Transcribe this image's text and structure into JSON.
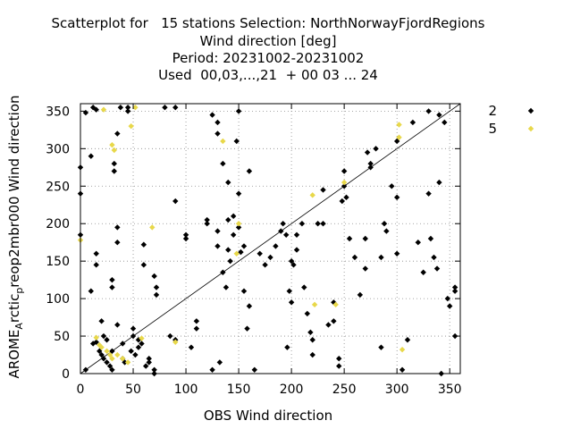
{
  "chart_data": {
    "type": "scatter",
    "title_lines": [
      "Scatterplot for   15 stations Selection: NorthNorwayFjordRegions",
      "Wind direction [deg]",
      "Period: 20231002-20231002",
      "Used  00,03,...,21  + 00 03 ... 24"
    ],
    "xlabel": "OBS Wind direction",
    "ylabel_prefix": "AROME",
    "ylabel_sub1": "A",
    "ylabel_mid": "rctic",
    "ylabel_sub2": "p",
    "ylabel_suffix": "reop2mbr000 Wind direction",
    "xlim": [
      0,
      360
    ],
    "ylim": [
      0,
      360
    ],
    "xticks": [
      0,
      50,
      100,
      150,
      200,
      250,
      300,
      350
    ],
    "yticks": [
      0,
      50,
      100,
      150,
      200,
      250,
      300,
      350
    ],
    "grid": true,
    "grid_style": "dotted",
    "diagonal": true,
    "legend_position": "right",
    "series": [
      {
        "name": "2",
        "color": "#000000",
        "marker": "diamond",
        "points": [
          [
            0,
            185
          ],
          [
            0,
            275
          ],
          [
            0,
            240
          ],
          [
            5,
            5
          ],
          [
            5,
            348
          ],
          [
            10,
            290
          ],
          [
            10,
            110
          ],
          [
            12,
            355
          ],
          [
            15,
            352
          ],
          [
            15,
            160
          ],
          [
            15,
            145
          ],
          [
            12,
            40
          ],
          [
            15,
            42
          ],
          [
            18,
            30
          ],
          [
            20,
            25
          ],
          [
            22,
            20
          ],
          [
            20,
            70
          ],
          [
            22,
            50
          ],
          [
            25,
            45
          ],
          [
            25,
            15
          ],
          [
            28,
            10
          ],
          [
            30,
            5
          ],
          [
            30,
            30
          ],
          [
            32,
            280
          ],
          [
            32,
            270
          ],
          [
            30,
            125
          ],
          [
            30,
            115
          ],
          [
            35,
            320
          ],
          [
            35,
            195
          ],
          [
            35,
            175
          ],
          [
            35,
            65
          ],
          [
            38,
            355
          ],
          [
            40,
            40
          ],
          [
            40,
            20
          ],
          [
            42,
            15
          ],
          [
            45,
            350
          ],
          [
            45,
            355
          ],
          [
            48,
            30
          ],
          [
            50,
            50
          ],
          [
            50,
            60
          ],
          [
            52,
            25
          ],
          [
            55,
            45
          ],
          [
            55,
            35
          ],
          [
            58,
            40
          ],
          [
            60,
            172
          ],
          [
            60,
            145
          ],
          [
            62,
            10
          ],
          [
            65,
            20
          ],
          [
            65,
            15
          ],
          [
            70,
            5
          ],
          [
            70,
            0
          ],
          [
            72,
            105
          ],
          [
            72,
            115
          ],
          [
            70,
            130
          ],
          [
            80,
            355
          ],
          [
            85,
            50
          ],
          [
            90,
            355
          ],
          [
            90,
            230
          ],
          [
            90,
            45
          ],
          [
            100,
            185
          ],
          [
            100,
            180
          ],
          [
            105,
            35
          ],
          [
            110,
            70
          ],
          [
            110,
            60
          ],
          [
            120,
            200
          ],
          [
            120,
            205
          ],
          [
            125,
            345
          ],
          [
            125,
            5
          ],
          [
            130,
            335
          ],
          [
            130,
            320
          ],
          [
            130,
            190
          ],
          [
            130,
            170
          ],
          [
            132,
            15
          ],
          [
            135,
            280
          ],
          [
            135,
            135
          ],
          [
            138,
            115
          ],
          [
            140,
            255
          ],
          [
            140,
            205
          ],
          [
            140,
            165
          ],
          [
            142,
            150
          ],
          [
            145,
            210
          ],
          [
            145,
            185
          ],
          [
            148,
            310
          ],
          [
            150,
            350
          ],
          [
            150,
            240
          ],
          [
            150,
            195
          ],
          [
            152,
            162
          ],
          [
            155,
            170
          ],
          [
            155,
            110
          ],
          [
            158,
            60
          ],
          [
            160,
            270
          ],
          [
            160,
            90
          ],
          [
            165,
            5
          ],
          [
            170,
            160
          ],
          [
            175,
            145
          ],
          [
            180,
            155
          ],
          [
            185,
            170
          ],
          [
            190,
            190
          ],
          [
            192,
            200
          ],
          [
            195,
            185
          ],
          [
            196,
            35
          ],
          [
            198,
            110
          ],
          [
            200,
            95
          ],
          [
            200,
            150
          ],
          [
            202,
            145
          ],
          [
            205,
            185
          ],
          [
            205,
            165
          ],
          [
            210,
            200
          ],
          [
            212,
            115
          ],
          [
            215,
            80
          ],
          [
            218,
            55
          ],
          [
            220,
            45
          ],
          [
            220,
            25
          ],
          [
            225,
            200
          ],
          [
            230,
            245
          ],
          [
            230,
            200
          ],
          [
            235,
            65
          ],
          [
            240,
            95
          ],
          [
            240,
            70
          ],
          [
            245,
            10
          ],
          [
            245,
            20
          ],
          [
            248,
            230
          ],
          [
            250,
            250
          ],
          [
            250,
            270
          ],
          [
            252,
            235
          ],
          [
            255,
            180
          ],
          [
            260,
            155
          ],
          [
            265,
            105
          ],
          [
            270,
            180
          ],
          [
            270,
            140
          ],
          [
            272,
            295
          ],
          [
            275,
            280
          ],
          [
            275,
            275
          ],
          [
            280,
            300
          ],
          [
            285,
            155
          ],
          [
            285,
            35
          ],
          [
            288,
            200
          ],
          [
            290,
            190
          ],
          [
            295,
            250
          ],
          [
            300,
            235
          ],
          [
            300,
            160
          ],
          [
            300,
            310
          ],
          [
            305,
            5
          ],
          [
            310,
            45
          ],
          [
            315,
            335
          ],
          [
            320,
            175
          ],
          [
            325,
            135
          ],
          [
            330,
            240
          ],
          [
            330,
            350
          ],
          [
            332,
            180
          ],
          [
            335,
            155
          ],
          [
            338,
            140
          ],
          [
            340,
            345
          ],
          [
            340,
            255
          ],
          [
            342,
            0
          ],
          [
            345,
            335
          ],
          [
            348,
            100
          ],
          [
            350,
            90
          ],
          [
            355,
            115
          ],
          [
            355,
            110
          ],
          [
            355,
            50
          ]
        ]
      },
      {
        "name": "5",
        "color": "#e8d84a",
        "marker": "diamond",
        "points": [
          [
            0,
            178
          ],
          [
            15,
            48
          ],
          [
            18,
            38
          ],
          [
            20,
            35
          ],
          [
            22,
            352
          ],
          [
            25,
            30
          ],
          [
            28,
            25
          ],
          [
            30,
            20
          ],
          [
            30,
            305
          ],
          [
            32,
            298
          ],
          [
            35,
            25
          ],
          [
            40,
            20
          ],
          [
            45,
            15
          ],
          [
            48,
            330
          ],
          [
            52,
            355
          ],
          [
            58,
            47
          ],
          [
            68,
            195
          ],
          [
            90,
            42
          ],
          [
            135,
            310
          ],
          [
            148,
            160
          ],
          [
            150,
            200
          ],
          [
            220,
            238
          ],
          [
            222,
            92
          ],
          [
            242,
            92
          ],
          [
            250,
            255
          ],
          [
            302,
            332
          ],
          [
            302,
            315
          ],
          [
            305,
            32
          ]
        ]
      }
    ]
  }
}
